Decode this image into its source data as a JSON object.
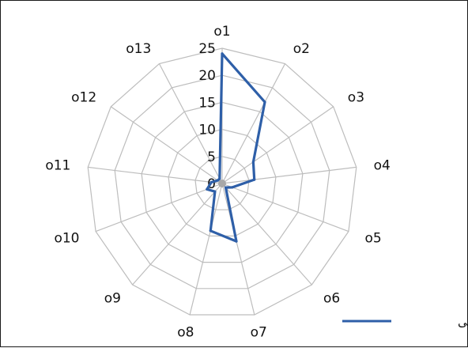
{
  "chart_data": {
    "type": "radar",
    "categories": [
      "o1",
      "o2",
      "o3",
      "o4",
      "o5",
      "o6",
      "o7",
      "o8",
      "o9",
      "o10",
      "o11",
      "o12",
      "o13"
    ],
    "series": [
      {
        "name": "وزن نهایی",
        "color": "#2e5fa8",
        "values": [
          24,
          17,
          7,
          6,
          2,
          1,
          11,
          9,
          2,
          3,
          2,
          1,
          1
        ]
      }
    ],
    "radial_ticks": [
      0,
      5,
      10,
      15,
      20,
      25
    ],
    "rlim": [
      0,
      25
    ],
    "grid": true,
    "legend_position": "bottom-right"
  }
}
